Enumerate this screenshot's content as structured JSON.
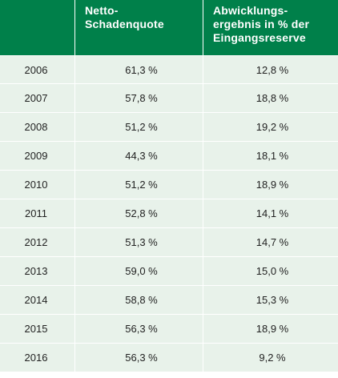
{
  "table": {
    "headers": [
      "",
      "Netto-\nSchadenquote",
      "Abwicklungs-\nergebnis in % der\nEingangsreserve"
    ],
    "header_lines": {
      "col2": [
        "Netto-",
        "Schadenquote"
      ],
      "col3": [
        "Abwicklungs-",
        "ergebnis in % der",
        "Eingangsreserve"
      ]
    },
    "rows": [
      [
        "2006",
        "61,3 %",
        "12,8 %"
      ],
      [
        "2007",
        "57,8 %",
        "18,8 %"
      ],
      [
        "2008",
        "51,2 %",
        "19,2 %"
      ],
      [
        "2009",
        "44,3 %",
        "18,1 %"
      ],
      [
        "2010",
        "51,2 %",
        "18,9 %"
      ],
      [
        "2011",
        "52,8 %",
        "14,1 %"
      ],
      [
        "2012",
        "51,3 %",
        "14,7 %"
      ],
      [
        "2013",
        "59,0 %",
        "15,0 %"
      ],
      [
        "2014",
        "58,8 %",
        "15,3 %"
      ],
      [
        "2015",
        "56,3 %",
        "18,9 %"
      ],
      [
        "2016",
        "56,3 %",
        "9,2 %"
      ]
    ]
  },
  "colors": {
    "header_bg": "#00804a",
    "row_bg": "#e8f2ea",
    "header_text": "#ffffff"
  }
}
